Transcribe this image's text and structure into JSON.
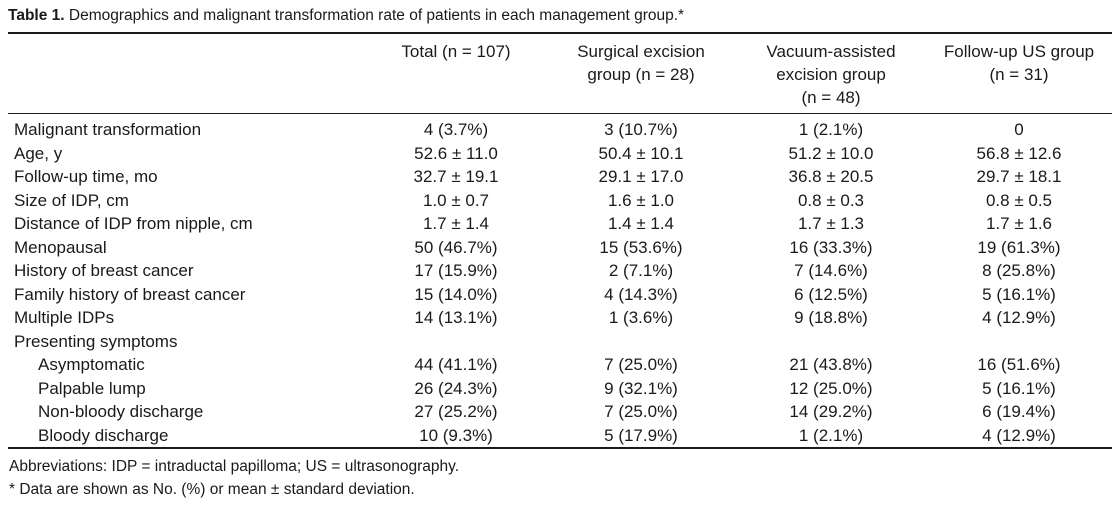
{
  "caption": {
    "label": "Table 1.",
    "text": " Demographics and malignant transformation rate of patients in each management group.*"
  },
  "table": {
    "headers": [
      [
        ""
      ],
      [
        "Total (n = 107)"
      ],
      [
        "Surgical excision",
        "group (n = 28)"
      ],
      [
        "Vacuum-assisted",
        "excision group",
        "(n = 48)"
      ],
      [
        "Follow-up US group",
        "(n = 31)"
      ]
    ],
    "rows": [
      {
        "label": "Malignant transformation",
        "indent": false,
        "values": [
          "4 (3.7%)",
          "3 (10.7%)",
          "1 (2.1%)",
          "0"
        ]
      },
      {
        "label": "Age, y",
        "indent": false,
        "values": [
          "52.6 ± 11.0",
          "50.4 ± 10.1",
          "51.2 ± 10.0",
          "56.8 ± 12.6"
        ]
      },
      {
        "label": "Follow-up time, mo",
        "indent": false,
        "values": [
          "32.7 ± 19.1",
          "29.1 ± 17.0",
          "36.8 ± 20.5",
          "29.7 ± 18.1"
        ]
      },
      {
        "label": "Size of IDP, cm",
        "indent": false,
        "values": [
          "1.0 ± 0.7",
          "1.6 ± 1.0",
          "0.8 ± 0.3",
          "0.8 ± 0.5"
        ]
      },
      {
        "label": "Distance of IDP from nipple, cm",
        "indent": false,
        "values": [
          "1.7 ± 1.4",
          "1.4 ± 1.4",
          "1.7 ± 1.3",
          "1.7 ± 1.6"
        ]
      },
      {
        "label": "Menopausal",
        "indent": false,
        "values": [
          "50 (46.7%)",
          "15 (53.6%)",
          "16 (33.3%)",
          "19 (61.3%)"
        ]
      },
      {
        "label": "History of breast cancer",
        "indent": false,
        "values": [
          "17 (15.9%)",
          "2 (7.1%)",
          "7 (14.6%)",
          "8 (25.8%)"
        ]
      },
      {
        "label": "Family history of breast cancer",
        "indent": false,
        "values": [
          "15 (14.0%)",
          "4 (14.3%)",
          "6 (12.5%)",
          "5 (16.1%)"
        ]
      },
      {
        "label": "Multiple IDPs",
        "indent": false,
        "values": [
          "14 (13.1%)",
          "1 (3.6%)",
          "9 (18.8%)",
          "4 (12.9%)"
        ]
      },
      {
        "label": "Presenting symptoms",
        "indent": false,
        "values": [
          "",
          "",
          "",
          ""
        ]
      },
      {
        "label": "Asymptomatic",
        "indent": true,
        "values": [
          "44 (41.1%)",
          "7 (25.0%)",
          "21 (43.8%)",
          "16 (51.6%)"
        ]
      },
      {
        "label": "Palpable lump",
        "indent": true,
        "values": [
          "26 (24.3%)",
          "9 (32.1%)",
          "12 (25.0%)",
          "5 (16.1%)"
        ]
      },
      {
        "label": "Non-bloody discharge",
        "indent": true,
        "values": [
          "27 (25.2%)",
          "7 (25.0%)",
          "14 (29.2%)",
          "6 (19.4%)"
        ]
      },
      {
        "label": "Bloody discharge",
        "indent": true,
        "values": [
          "10 (9.3%)",
          "5 (17.9%)",
          "1 (2.1%)",
          "4 (12.9%)"
        ]
      }
    ]
  },
  "footnotes": [
    "Abbreviations: IDP = intraductal papilloma; US = ultrasonography.",
    "* Data are shown as No. (%) or mean ± standard deviation."
  ]
}
